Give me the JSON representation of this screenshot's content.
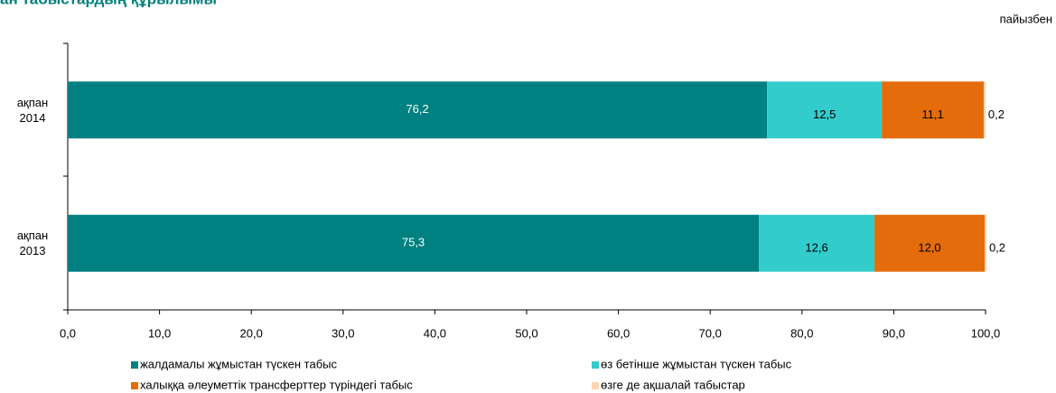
{
  "chart_data": {
    "type": "stacked_barh",
    "title": "ан табыстардың құрылымы",
    "unit_label": "пайызбен",
    "categories": [
      "ақпан 2014",
      "ақпан 2013"
    ],
    "series": [
      {
        "name": "жалдамалы жұмыстан түскен табыс",
        "color": "#008080",
        "values": [
          76.2,
          75.3
        ],
        "value_labels": [
          "76,2",
          "75,3"
        ]
      },
      {
        "name": "өз бетінше жұмыстан түскен табыс",
        "color": "#33cccc",
        "values": [
          12.5,
          12.6
        ],
        "value_labels": [
          "12,5",
          "12,6"
        ]
      },
      {
        "name": "халыққа әлеуметтік трансферттер түріндегі табыс",
        "color": "#e46c0a",
        "values": [
          11.1,
          12.0
        ],
        "value_labels": [
          "11,1",
          "12,0"
        ]
      },
      {
        "name": "өзге де ақшалай табыстар",
        "color": "#fcd5b4",
        "values": [
          0.2,
          0.2
        ],
        "value_labels": [
          "0,2",
          "0,2"
        ]
      }
    ],
    "xlim": [
      0,
      100
    ],
    "xticks": [
      {
        "value": 0,
        "label": "0,0"
      },
      {
        "value": 10,
        "label": "10,0"
      },
      {
        "value": 20,
        "label": "20,0"
      },
      {
        "value": 30,
        "label": "30,0"
      },
      {
        "value": 40,
        "label": "40,0"
      },
      {
        "value": 50,
        "label": "50,0"
      },
      {
        "value": 60,
        "label": "60,0"
      },
      {
        "value": 70,
        "label": "70,0"
      },
      {
        "value": 80,
        "label": "80,0"
      },
      {
        "value": 90,
        "label": "90,0"
      },
      {
        "value": 100,
        "label": "100,0"
      }
    ],
    "legend": "bottom"
  }
}
